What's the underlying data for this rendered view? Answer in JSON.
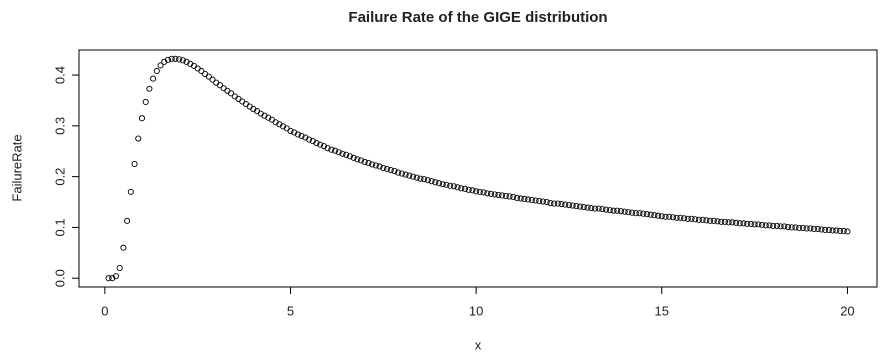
{
  "chart_data": {
    "type": "scatter",
    "title": "Failure Rate of the GIGE distribution",
    "x_label": "x",
    "y_label": "FailureRate",
    "color": "#000000",
    "xlim": [
      -0.696,
      20.796
    ],
    "ylim": [
      -0.0173,
      0.4493
    ],
    "xticks": [
      0,
      5,
      10,
      15,
      20
    ],
    "yticks": [
      {
        "value": 0,
        "label": "0.0"
      },
      0.1,
      0.2,
      0.3,
      0.4
    ],
    "grid": false,
    "x": [
      0.1,
      0.2,
      0.3,
      0.4,
      0.5,
      0.6,
      0.7,
      0.8,
      0.9,
      1.0,
      1.1,
      1.2,
      1.3,
      1.4,
      1.5,
      1.6,
      1.7,
      1.8,
      1.9,
      2.0,
      2.1,
      2.2,
      2.3,
      2.4,
      2.5,
      2.6,
      2.7,
      2.8,
      2.9,
      3.0,
      3.1,
      3.2,
      3.3,
      3.4,
      3.5,
      3.6,
      3.7,
      3.8,
      3.9,
      4.0,
      4.1,
      4.2,
      4.3,
      4.4,
      4.5,
      4.6,
      4.7,
      4.8,
      4.9,
      5.0,
      5.1,
      5.2,
      5.3,
      5.4,
      5.5,
      5.6,
      5.7,
      5.8,
      5.9,
      6.0,
      6.1,
      6.2,
      6.3,
      6.4,
      6.5,
      6.6,
      6.7,
      6.8,
      6.9,
      7.0,
      7.1,
      7.2,
      7.3,
      7.4,
      7.5,
      7.6,
      7.7,
      7.8,
      7.9,
      8.0,
      8.1,
      8.2,
      8.3,
      8.4,
      8.5,
      8.6,
      8.7,
      8.8,
      8.9,
      9.0,
      9.1,
      9.2,
      9.3,
      9.4,
      9.5,
      9.6,
      9.7,
      9.8,
      9.9,
      10.0,
      10.1,
      10.2,
      10.3,
      10.4,
      10.5,
      10.6,
      10.7,
      10.8,
      10.9,
      11.0,
      11.1,
      11.2,
      11.3,
      11.4,
      11.5,
      11.6,
      11.7,
      11.8,
      11.9,
      12.0,
      12.1,
      12.2,
      12.3,
      12.4,
      12.5,
      12.6,
      12.7,
      12.8,
      12.9,
      13.0,
      13.1,
      13.2,
      13.3,
      13.4,
      13.5,
      13.6,
      13.7,
      13.8,
      13.9,
      14.0,
      14.1,
      14.2,
      14.3,
      14.4,
      14.5,
      14.6,
      14.7,
      14.8,
      14.9,
      15.0,
      15.1,
      15.2,
      15.3,
      15.4,
      15.5,
      15.6,
      15.7,
      15.8,
      15.9,
      16.0,
      16.1,
      16.2,
      16.3,
      16.4,
      16.5,
      16.6,
      16.7,
      16.8,
      16.9,
      17.0,
      17.1,
      17.2,
      17.3,
      17.4,
      17.5,
      17.6,
      17.7,
      17.8,
      17.9,
      18.0,
      18.1,
      18.2,
      18.3,
      18.4,
      18.5,
      18.6,
      18.7,
      18.8,
      18.9,
      19.0,
      19.1,
      19.2,
      19.3,
      19.4,
      19.5,
      19.6,
      19.7,
      19.8,
      19.9,
      20.0
    ],
    "values": [
      0.0,
      0.0,
      0.004,
      0.02,
      0.06,
      0.113,
      0.17,
      0.225,
      0.275,
      0.315,
      0.347,
      0.373,
      0.393,
      0.408,
      0.419,
      0.426,
      0.43,
      0.432,
      0.432,
      0.431,
      0.429,
      0.426,
      0.422,
      0.418,
      0.413,
      0.408,
      0.402,
      0.397,
      0.391,
      0.385,
      0.38,
      0.374,
      0.369,
      0.364,
      0.358,
      0.353,
      0.348,
      0.343,
      0.338,
      0.333,
      0.329,
      0.324,
      0.32,
      0.316,
      0.312,
      0.307,
      0.303,
      0.299,
      0.295,
      0.29,
      0.287,
      0.283,
      0.28,
      0.277,
      0.273,
      0.27,
      0.266,
      0.263,
      0.26,
      0.256,
      0.253,
      0.251,
      0.248,
      0.245,
      0.243,
      0.24,
      0.237,
      0.234,
      0.232,
      0.229,
      0.227,
      0.224,
      0.222,
      0.22,
      0.217,
      0.215,
      0.213,
      0.211,
      0.208,
      0.206,
      0.204,
      0.202,
      0.2,
      0.198,
      0.196,
      0.195,
      0.193,
      0.191,
      0.189,
      0.187,
      0.185,
      0.184,
      0.182,
      0.181,
      0.179,
      0.177,
      0.176,
      0.174,
      0.173,
      0.171,
      0.17,
      0.169,
      0.167,
      0.166,
      0.165,
      0.164,
      0.163,
      0.162,
      0.161,
      0.16,
      0.158,
      0.157,
      0.156,
      0.155,
      0.154,
      0.153,
      0.152,
      0.151,
      0.15,
      0.148,
      0.147,
      0.147,
      0.146,
      0.145,
      0.144,
      0.143,
      0.142,
      0.141,
      0.14,
      0.139,
      0.138,
      0.137,
      0.137,
      0.136,
      0.135,
      0.134,
      0.133,
      0.133,
      0.132,
      0.131,
      0.13,
      0.129,
      0.128,
      0.128,
      0.127,
      0.126,
      0.125,
      0.124,
      0.123,
      0.122,
      0.121,
      0.121,
      0.12,
      0.119,
      0.119,
      0.118,
      0.117,
      0.117,
      0.116,
      0.115,
      0.115,
      0.114,
      0.113,
      0.113,
      0.112,
      0.111,
      0.111,
      0.11,
      0.11,
      0.109,
      0.108,
      0.108,
      0.107,
      0.107,
      0.106,
      0.106,
      0.105,
      0.104,
      0.104,
      0.103,
      0.103,
      0.102,
      0.102,
      0.101,
      0.1,
      0.1,
      0.099,
      0.099,
      0.098,
      0.098,
      0.097,
      0.097,
      0.096,
      0.095,
      0.095,
      0.094,
      0.094,
      0.093,
      0.093,
      0.092
    ]
  }
}
